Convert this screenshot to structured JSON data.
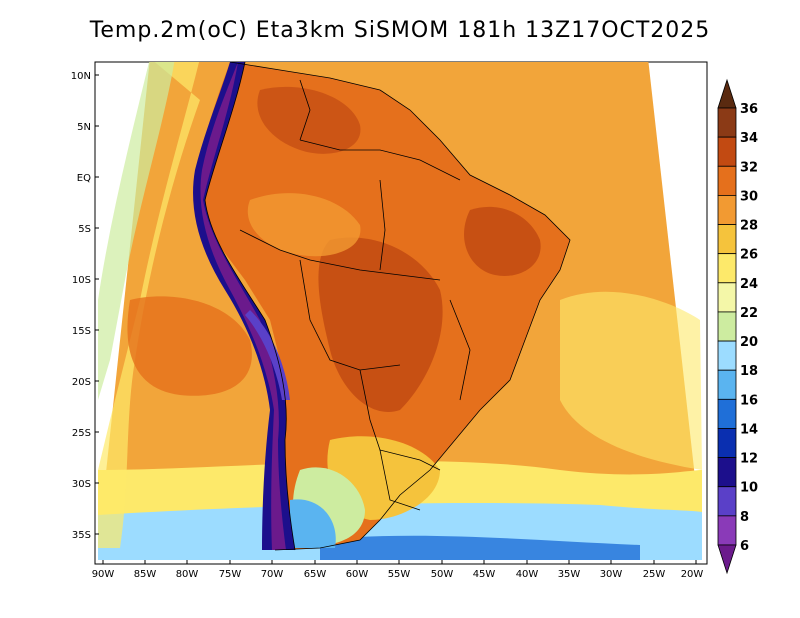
{
  "title": "Temp.2m(oC) Eta3km SiSMOM 181h 13Z17OCT2025",
  "map": {
    "lat_labels": [
      "10N",
      "5N",
      "EQ",
      "5S",
      "10S",
      "15S",
      "20S",
      "25S",
      "30S",
      "35S"
    ],
    "lon_labels": [
      "90W",
      "85W",
      "80W",
      "75W",
      "70W",
      "65W",
      "60W",
      "55W",
      "50W",
      "45W",
      "40W",
      "35W",
      "30W",
      "25W",
      "20W"
    ]
  },
  "colorbar": {
    "labels": [
      "36",
      "34",
      "32",
      "30",
      "28",
      "26",
      "24",
      "22",
      "20",
      "18",
      "16",
      "14",
      "12",
      "10",
      "8",
      "6"
    ],
    "colors": [
      "#5a2a10",
      "#8b3a16",
      "#c24a12",
      "#e5701c",
      "#f29a32",
      "#f5c33c",
      "#fde96a",
      "#f4f7a8",
      "#cdeca0",
      "#9cdcff",
      "#5ab4f0",
      "#1f6fd8",
      "#0a2fb0",
      "#1c0f8c",
      "#5a40c8",
      "#8a3ab8",
      "#6b1a8c"
    ]
  }
}
